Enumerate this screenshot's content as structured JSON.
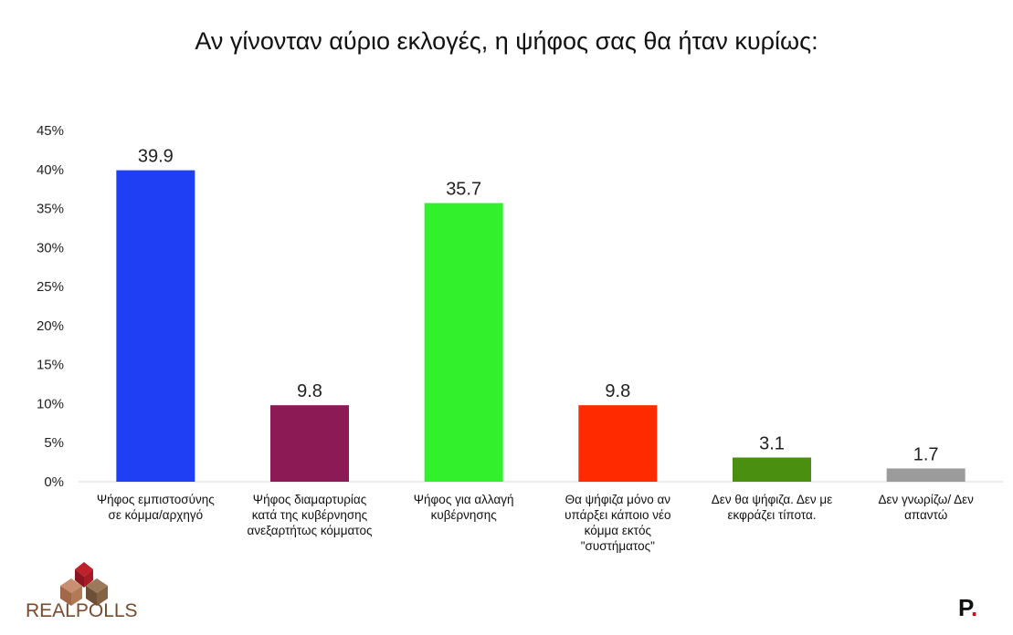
{
  "chart_data": {
    "type": "bar",
    "title": "Αν γίνονταν αύριο εκλογές, η ψήφος σας θα ήταν κυρίως:",
    "xlabel": "",
    "ylabel": "",
    "ylim": [
      0,
      45
    ],
    "yticks": [
      "0%",
      "5%",
      "10%",
      "15%",
      "20%",
      "25%",
      "30%",
      "35%",
      "40%",
      "45%"
    ],
    "grid": false,
    "categories": [
      [
        "Ψήφος εμπιστοσύνης",
        "σε κόμμα/αρχηγό"
      ],
      [
        "Ψήφος διαμαρτυρίας",
        "κατά της κυβέρνησης",
        "ανεξαρτήτως κόμματος"
      ],
      [
        "Ψήφος για αλλαγή",
        "κυβέρνησης"
      ],
      [
        "Θα ψήφιζα μόνο  αν",
        "υπάρξει κάποιο  νέο",
        "κόμμα εκτός",
        "\"συστήματος\""
      ],
      [
        "Δεν θα ψήφιζα.  Δεν με",
        "εκφράζει τίποτα."
      ],
      [
        "Δεν γνωρίζω/ Δεν",
        "απαντώ"
      ]
    ],
    "values": [
      39.9,
      9.8,
      35.7,
      9.8,
      3.1,
      1.7
    ],
    "value_labels": [
      "39.9",
      "9.8",
      "35.7",
      "9.8",
      "3.1",
      "1.7"
    ],
    "colors": [
      "#1f3ff5",
      "#8b1a55",
      "#33f02c",
      "#ff2a00",
      "#4a8f10",
      "#9b9b9b"
    ]
  },
  "logos": {
    "left_text_a": "REAL",
    "left_text_b": "POLLS",
    "right_text": "P",
    "right_dot": "."
  }
}
